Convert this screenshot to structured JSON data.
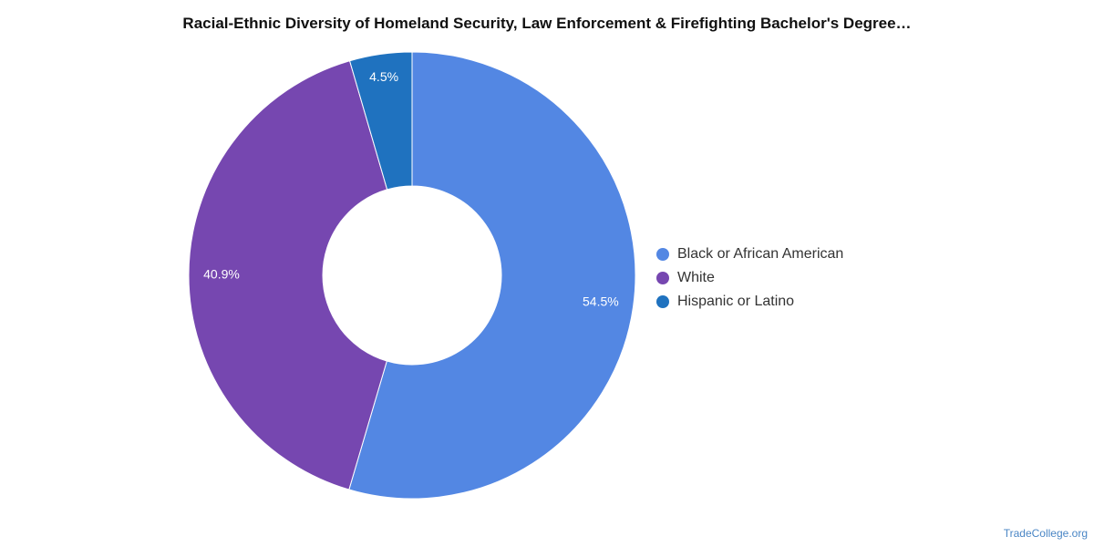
{
  "chart_data": {
    "type": "pie",
    "title": "Racial-Ethnic Diversity of Homeland Security, Law Enforcement & Firefighting Bachelor's Degree…",
    "donut": true,
    "legend_position": "right",
    "slices": [
      {
        "label": "Black or African American",
        "value": 54.5,
        "display": "54.5%",
        "color": "#5387e3"
      },
      {
        "label": "White",
        "value": 40.9,
        "display": "40.9%",
        "color": "#7647b0"
      },
      {
        "label": "Hispanic or Latino",
        "value": 4.5,
        "display": "4.5%",
        "color": "#1f72bf"
      }
    ]
  },
  "watermark": "TradeCollege.org"
}
